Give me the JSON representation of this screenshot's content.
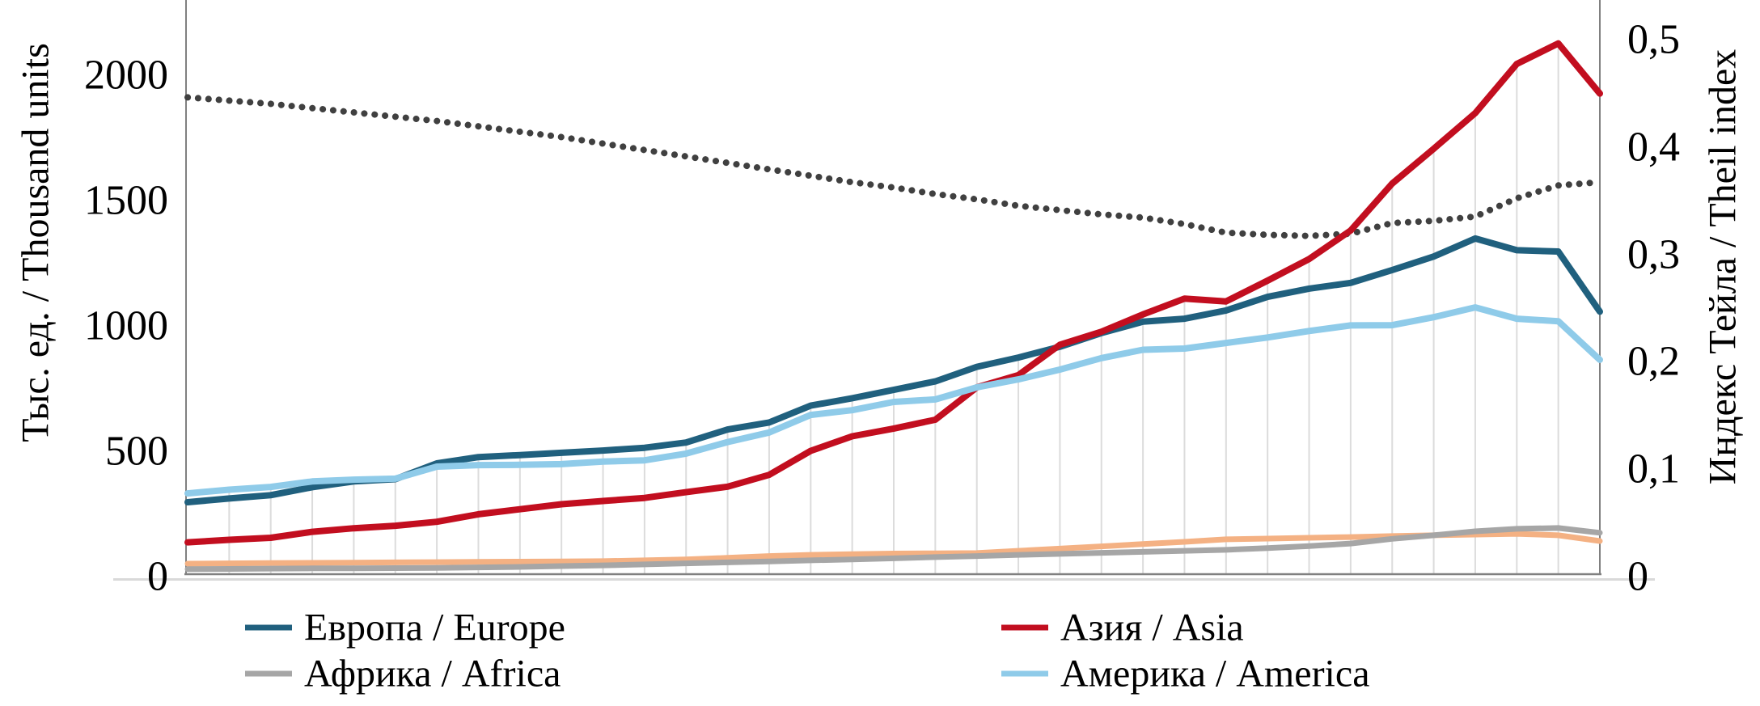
{
  "chart_data": {
    "type": "line",
    "title": "",
    "x_axis": {
      "tick_labels_visible": false,
      "n_points": 35
    },
    "y_axis_left": {
      "title": "Тыс. ед. / Thousand units",
      "ticks": [
        {
          "label": "0",
          "value": 0
        },
        {
          "label": "500",
          "value": 500
        },
        {
          "label": "1000",
          "value": 1000
        },
        {
          "label": "1500",
          "value": 1500
        },
        {
          "label": "2000",
          "value": 2000
        }
      ],
      "range_shown": [
        0,
        2290
      ]
    },
    "y_axis_right": {
      "title": "Индекс Тейла / Theil index",
      "ticks": [
        {
          "label": "0",
          "value": 0
        },
        {
          "label": "0,1",
          "value": 0.1
        },
        {
          "label": "0,2",
          "value": 0.2
        },
        {
          "label": "0,3",
          "value": 0.3
        },
        {
          "label": "0,4",
          "value": 0.4
        },
        {
          "label": "0,5",
          "value": 0.5
        }
      ],
      "range_shown": [
        0,
        0.54
      ]
    },
    "grid": "vertical-drop-lines",
    "legend_position": "bottom-two-columns",
    "series": [
      {
        "id": "europe",
        "label": "Европа / Europe",
        "color": "#20607E",
        "axis": "left",
        "style": "solid",
        "width": 8,
        "values": [
          300,
          315,
          328,
          360,
          383,
          392,
          455,
          480,
          488,
          497,
          506,
          517,
          538,
          590,
          618,
          685,
          715,
          748,
          782,
          840,
          877,
          920,
          975,
          1020,
          1032,
          1065,
          1119,
          1152,
          1175,
          1226,
          1280,
          1352,
          1305,
          1300,
          1060
        ]
      },
      {
        "id": "africa",
        "label": "Африка / Africa",
        "color": "#A6A6A6",
        "axis": "left",
        "style": "solid",
        "width": 7,
        "values": [
          33,
          34,
          35,
          36,
          36,
          37,
          38,
          40,
          42,
          45,
          48,
          52,
          56,
          60,
          64,
          68,
          72,
          76,
          81,
          85,
          90,
          94,
          98,
          102,
          106,
          110,
          117,
          125,
          135,
          154,
          168,
          184,
          194,
          197,
          178
        ]
      },
      {
        "id": "asia",
        "label": "Азия / Asia",
        "color": "#C20E1F",
        "axis": "left",
        "style": "solid",
        "width": 8,
        "values": [
          140,
          150,
          158,
          182,
          196,
          206,
          222,
          252,
          272,
          292,
          305,
          317,
          340,
          362,
          409,
          505,
          563,
          594,
          629,
          758,
          807,
          928,
          980,
          1049,
          1112,
          1101,
          1184,
          1270,
          1384,
          1571,
          1710,
          1852,
          2048,
          2130,
          1930
        ]
      },
      {
        "id": "america",
        "label": "Америка / America",
        "color": "#8FCBE9",
        "axis": "left",
        "style": "solid",
        "width": 8,
        "values": [
          335,
          350,
          361,
          383,
          390,
          394,
          442,
          448,
          449,
          452,
          462,
          467,
          494,
          540,
          578,
          648,
          667,
          700,
          710,
          758,
          790,
          829,
          875,
          908,
          913,
          935,
          957,
          983,
          1005,
          1006,
          1038,
          1077,
          1032,
          1022,
          868
        ]
      },
      {
        "id": "orange-unlabeled",
        "label": "",
        "color": "#F4B183",
        "axis": "left",
        "style": "solid",
        "width": 7,
        "values": [
          55,
          56,
          57,
          58,
          59,
          60,
          61,
          62,
          63,
          64,
          65,
          68,
          72,
          78,
          85,
          90,
          93,
          95,
          96,
          97,
          106,
          115,
          124,
          133,
          142,
          152,
          155,
          158,
          161,
          165,
          168,
          171,
          174,
          168,
          145
        ]
      },
      {
        "id": "theil",
        "label": "",
        "color": "#404040",
        "axis": "right",
        "style": "dotted",
        "width": 8,
        "values": [
          0.447,
          0.444,
          0.441,
          0.437,
          0.433,
          0.429,
          0.425,
          0.42,
          0.415,
          0.41,
          0.404,
          0.398,
          0.392,
          0.386,
          0.38,
          0.374,
          0.368,
          0.363,
          0.357,
          0.352,
          0.346,
          0.342,
          0.338,
          0.335,
          0.329,
          0.321,
          0.319,
          0.318,
          0.32,
          0.33,
          0.332,
          0.336,
          0.353,
          0.365,
          0.368
        ]
      }
    ],
    "legend": [
      {
        "label": "Европа / Europe",
        "series": "europe"
      },
      {
        "label": "Африка / Africa",
        "series": "africa"
      },
      {
        "label": "Азия / Asia",
        "series": "asia"
      },
      {
        "label": "Америка / America",
        "series": "america"
      }
    ],
    "colors": {
      "axis_line": "#808080",
      "axis_underline": "#D9D9D9",
      "drop_line": "#DCDCDC",
      "text": "#000000",
      "background": "#FFFFFF"
    }
  }
}
